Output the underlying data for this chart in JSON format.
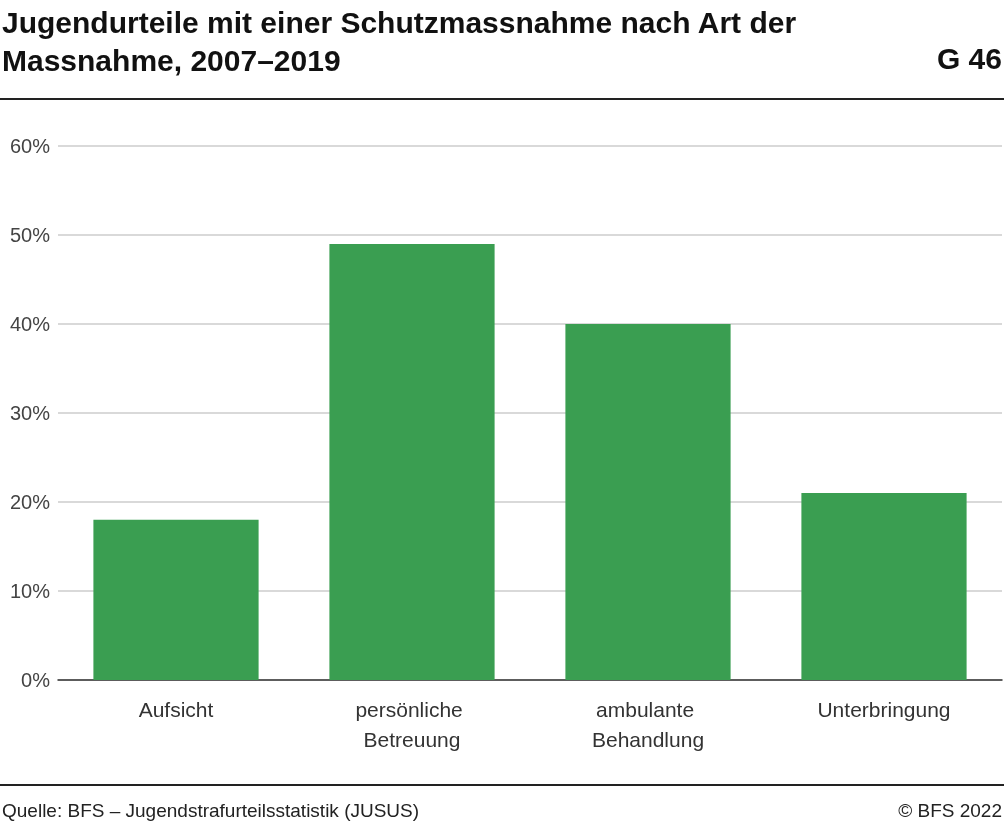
{
  "chart_data": {
    "type": "bar",
    "title": "Jugendurteile mit einer Schutzmassnahme nach Art der Massnahme, 2007–2019",
    "categories": [
      "Aufsicht",
      "persönliche Betreuung",
      "ambulante Behandlung",
      "Unterbringung"
    ],
    "values": [
      18,
      49,
      40,
      21
    ],
    "color": "#3a9e51",
    "ylim": [
      0,
      60
    ],
    "yticks": [
      {
        "value": 0,
        "label": "0%"
      },
      {
        "value": 10,
        "label": "10%"
      },
      {
        "value": 20,
        "label": "20%"
      },
      {
        "value": 30,
        "label": "30%"
      },
      {
        "value": 40,
        "label": "40%"
      },
      {
        "value": 50,
        "label": "50%"
      },
      {
        "value": 60,
        "label": "60%"
      }
    ],
    "grid": "y",
    "annotations": [
      "G 46",
      "Quelle: BFS – Jugendstrafurteilsstatistik (JUSUS)",
      "© BFS 2022"
    ]
  }
}
